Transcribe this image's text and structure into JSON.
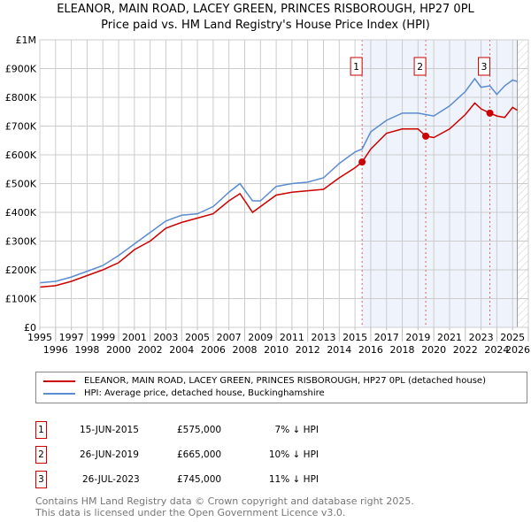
{
  "title": "ELEANOR, MAIN ROAD, LACEY GREEN, PRINCES RISBOROUGH, HP27 0PL",
  "subtitle": "Price paid vs. HM Land Registry's House Price Index (HPI)",
  "chart_data": {
    "type": "line",
    "xlim": [
      1995,
      2026
    ],
    "ylim": [
      0,
      1000000
    ],
    "x_ticks": [
      "1995",
      "1996",
      "1997",
      "1998",
      "1999",
      "2000",
      "2001",
      "2002",
      "2003",
      "2004",
      "2005",
      "2006",
      "2007",
      "2008",
      "2009",
      "2010",
      "2011",
      "2012",
      "2013",
      "2014",
      "2015",
      "2016",
      "2017",
      "2018",
      "2019",
      "2020",
      "2021",
      "2022",
      "2023",
      "2024",
      "2025",
      "2026"
    ],
    "y_ticks": [
      {
        "v": 0,
        "label": "£0"
      },
      {
        "v": 100000,
        "label": "£100K"
      },
      {
        "v": 200000,
        "label": "£200K"
      },
      {
        "v": 300000,
        "label": "£300K"
      },
      {
        "v": 400000,
        "label": "£400K"
      },
      {
        "v": 500000,
        "label": "£500K"
      },
      {
        "v": 600000,
        "label": "£600K"
      },
      {
        "v": 700000,
        "label": "£700K"
      },
      {
        "v": 800000,
        "label": "£800K"
      },
      {
        "v": 900000,
        "label": "£900K"
      },
      {
        "v": 1000000,
        "label": "£1M"
      }
    ],
    "series": [
      {
        "name": "ELEANOR, MAIN ROAD, LACEY GREEN, PRINCES RISBOROUGH, HP27 0PL (detached house)",
        "color": "#cc0000",
        "x": [
          1995,
          1996,
          1997,
          1998,
          1999,
          2000,
          2001,
          2002,
          2003,
          2004,
          2005,
          2006,
          2007,
          2007.7,
          2008.5,
          2009,
          2010,
          2011,
          2012,
          2013,
          2014,
          2015,
          2015.45,
          2016,
          2017,
          2018,
          2019,
          2019.5,
          2020,
          2021,
          2022,
          2022.6,
          2023,
          2023.56,
          2024,
          2024.5,
          2025,
          2025.3
        ],
        "y": [
          140000,
          145000,
          160000,
          180000,
          200000,
          225000,
          270000,
          300000,
          345000,
          365000,
          380000,
          395000,
          440000,
          465000,
          400000,
          420000,
          460000,
          470000,
          475000,
          480000,
          520000,
          555000,
          575000,
          620000,
          675000,
          690000,
          690000,
          665000,
          660000,
          690000,
          740000,
          780000,
          760000,
          745000,
          735000,
          730000,
          765000,
          755000
        ]
      },
      {
        "name": "HPI: Average price, detached house, Buckinghamshire",
        "color": "#5b8bd0",
        "x": [
          1995,
          1996,
          1997,
          1998,
          1999,
          2000,
          2001,
          2002,
          2003,
          2004,
          2005,
          2006,
          2007,
          2007.7,
          2008.5,
          2009,
          2010,
          2011,
          2012,
          2013,
          2014,
          2015,
          2015.45,
          2016,
          2017,
          2018,
          2019,
          2019.5,
          2020,
          2021,
          2022,
          2022.6,
          2023,
          2023.56,
          2024,
          2024.5,
          2025,
          2025.3
        ],
        "y": [
          155000,
          160000,
          175000,
          195000,
          215000,
          250000,
          290000,
          330000,
          370000,
          390000,
          395000,
          420000,
          470000,
          500000,
          440000,
          440000,
          490000,
          500000,
          505000,
          520000,
          570000,
          610000,
          620000,
          680000,
          720000,
          745000,
          745000,
          740000,
          735000,
          770000,
          820000,
          865000,
          835000,
          840000,
          810000,
          840000,
          860000,
          855000
        ]
      }
    ],
    "sales": [
      {
        "label": "1",
        "date": "15-JUN-2015",
        "x": 2015.45,
        "price": "£575,000",
        "value": 575000,
        "hpi": "7% ↓ HPI"
      },
      {
        "label": "2",
        "date": "26-JUN-2019",
        "x": 2019.49,
        "price": "£665,000",
        "value": 665000,
        "hpi": "10% ↓ HPI"
      },
      {
        "label": "3",
        "date": "26-JUL-2023",
        "x": 2023.56,
        "price": "£745,000",
        "value": 745000,
        "hpi": "11% ↓ HPI"
      }
    ],
    "shaded_from": 2015.45,
    "data_end": 2025.3,
    "legend_placement": "bottom"
  },
  "footer": [
    "Contains HM Land Registry data © Crown copyright and database right 2025.",
    "This data is licensed under the Open Government Licence v3.0."
  ]
}
